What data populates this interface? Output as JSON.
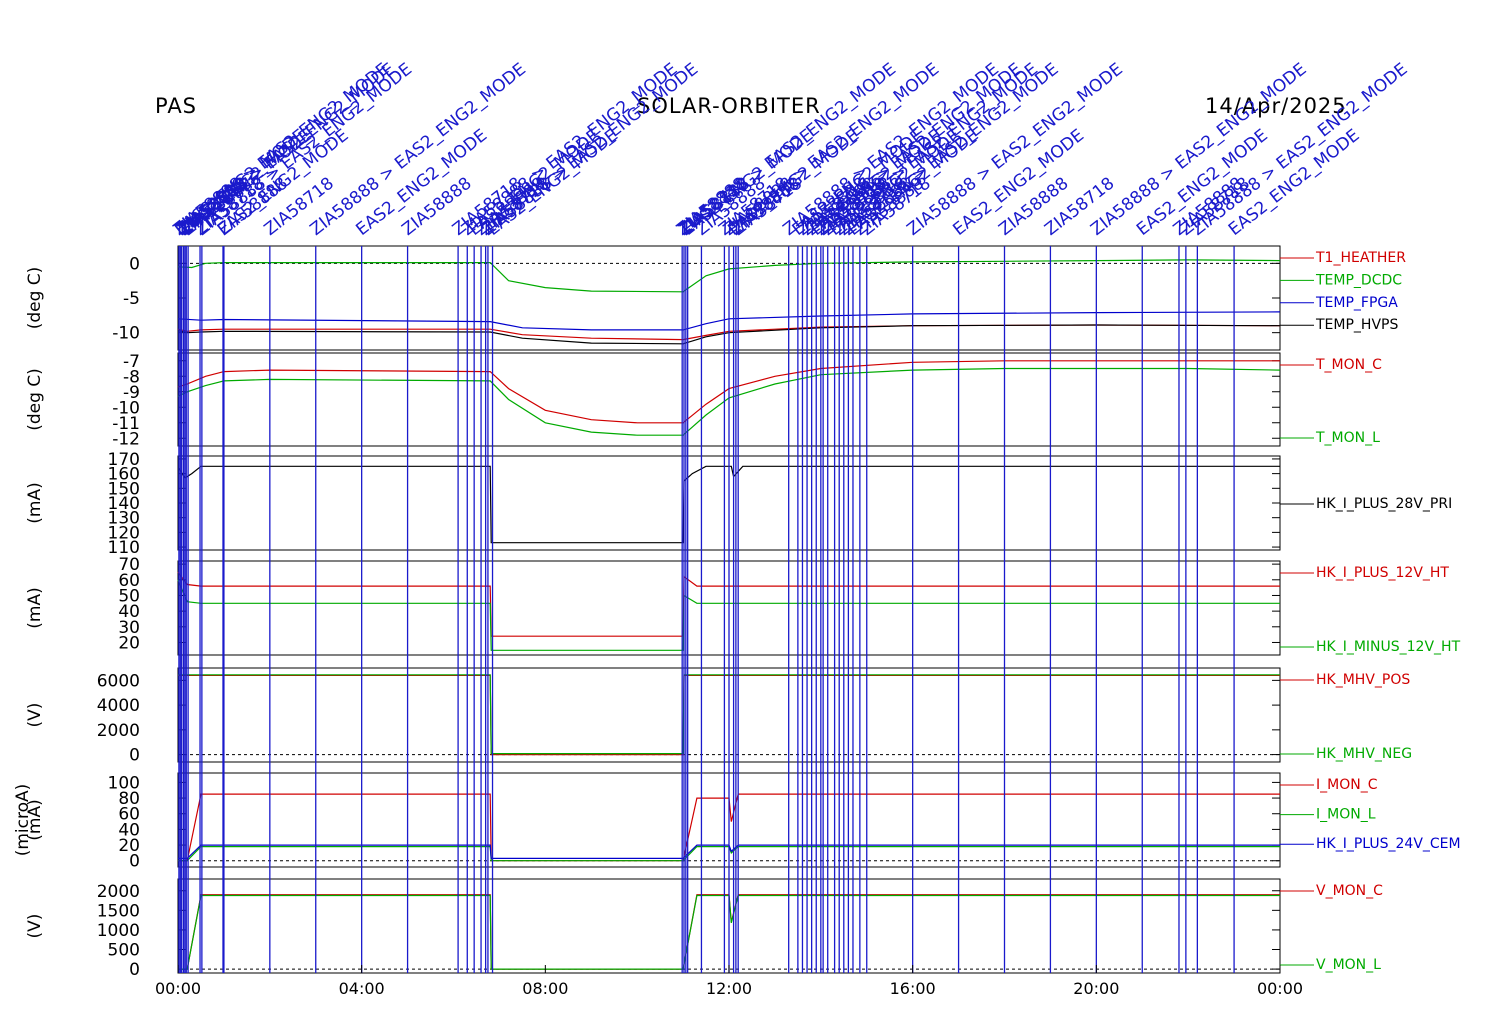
{
  "header": {
    "left": "PAS",
    "center": "SOLAR-ORBITER",
    "right": "14/Apr/2025"
  },
  "colors": {
    "red": "#d00000",
    "green": "#00aa00",
    "blue": "#0000cc",
    "black": "#000000",
    "event": "#1a1acc"
  },
  "chart_data": {
    "type": "line",
    "x_range_hours": [
      0,
      24
    ],
    "x_ticks": [
      "00:00",
      "04:00",
      "08:00",
      "12:00",
      "16:00",
      "20:00",
      "00:00"
    ],
    "event_lines_hours": [
      0.02,
      0.05,
      0.08,
      0.12,
      0.15,
      0.18,
      0.22,
      0.48,
      0.52,
      0.98,
      1.0,
      2.0,
      3.0,
      4.0,
      5.0,
      6.1,
      6.3,
      6.45,
      6.6,
      6.7,
      6.75,
      6.85,
      10.98,
      11.02,
      11.06,
      11.1,
      11.4,
      11.9,
      12.0,
      12.1,
      12.15,
      12.2,
      13.3,
      13.5,
      13.6,
      13.7,
      13.8,
      13.9,
      14.0,
      14.05,
      14.15,
      14.3,
      14.4,
      14.5,
      14.6,
      14.7,
      14.85,
      15.0,
      16.0,
      17.0,
      18.0,
      19.0,
      20.0,
      21.0,
      21.8,
      21.95,
      22.2,
      23.0
    ],
    "event_labels": [
      "ZIA58888 > EAS2_ENG2_MODE",
      "EAS2_ENG2_MODE",
      "ZIA58888",
      "ZIA58718"
    ],
    "panels": [
      {
        "ylabel": "(deg C)",
        "ylim": [
          -12.5,
          2.5
        ],
        "ticks": [
          0,
          -5,
          -10
        ],
        "zero_line": true,
        "series": [
          {
            "name": "T1_HEATHER",
            "color": "red",
            "x": [
              0,
              0.2,
              0.5,
              1,
              6.8,
              7.5,
              9,
              11,
              11.5,
              12,
              14,
              16,
              20,
              24
            ],
            "y": [
              -9.5,
              -9.8,
              -9.6,
              -9.5,
              -9.5,
              -10.3,
              -10.8,
              -11,
              -10.4,
              -9.8,
              -9.2,
              -9,
              -8.9,
              -9
            ]
          },
          {
            "name": "TEMP_DCDC",
            "color": "green",
            "x": [
              0,
              0.3,
              0.6,
              1,
              6.8,
              7.2,
              8,
              9,
              11,
              11.5,
              12,
              13,
              14,
              16,
              18,
              20,
              22,
              24
            ],
            "y": [
              -0.5,
              -0.6,
              0,
              0.1,
              0.1,
              -2.5,
              -3.5,
              -4,
              -4.1,
              -1.8,
              -0.8,
              -0.3,
              0,
              0.2,
              0.3,
              0.4,
              0.5,
              0.4
            ]
          },
          {
            "name": "TEMP_FPGA",
            "color": "blue",
            "x": [
              0,
              0.5,
              1,
              6.8,
              7.5,
              9,
              11,
              11.5,
              12,
              14,
              16,
              20,
              24
            ],
            "y": [
              -8,
              -8.2,
              -8.1,
              -8.4,
              -9.3,
              -9.6,
              -9.6,
              -8.7,
              -8,
              -7.6,
              -7.3,
              -7.1,
              -7
            ]
          },
          {
            "name": "TEMP_HVPS",
            "color": "black",
            "x": [
              0,
              0.2,
              0.5,
              1,
              6.8,
              7.5,
              9,
              11,
              11.5,
              12,
              14,
              16,
              20,
              24
            ],
            "y": [
              -9.7,
              -10,
              -9.9,
              -9.8,
              -9.9,
              -10.8,
              -11.5,
              -11.6,
              -10.6,
              -10,
              -9.3,
              -9,
              -8.9,
              -9
            ]
          }
        ]
      },
      {
        "ylabel": "(deg C)",
        "ylim": [
          -12.5,
          -6.5
        ],
        "ticks": [
          -7,
          -8,
          -9,
          -10,
          -11,
          -12
        ],
        "zero_line": false,
        "series": [
          {
            "name": "T_MON_C",
            "color": "red",
            "x": [
              0,
              0.2,
              0.6,
              1,
              2,
              6.8,
              7.2,
              8,
              9,
              10,
              11,
              11.5,
              12,
              13,
              14,
              16,
              18,
              20,
              22,
              24
            ],
            "y": [
              -8.7,
              -8.5,
              -8.0,
              -7.7,
              -7.6,
              -7.7,
              -8.8,
              -10.2,
              -10.8,
              -11.0,
              -11.0,
              -9.8,
              -8.8,
              -8.0,
              -7.5,
              -7.1,
              -7.0,
              -7.0,
              -7.0,
              -7.0
            ]
          },
          {
            "name": "T_MON_L",
            "color": "green",
            "x": [
              0,
              0.2,
              0.6,
              1,
              2,
              6.8,
              7.2,
              8,
              9,
              10,
              11,
              11.5,
              12,
              13,
              14,
              16,
              18,
              20,
              22,
              24
            ],
            "y": [
              -9.3,
              -9.0,
              -8.6,
              -8.3,
              -8.2,
              -8.3,
              -9.5,
              -11.0,
              -11.6,
              -11.8,
              -11.8,
              -10.5,
              -9.4,
              -8.5,
              -7.9,
              -7.6,
              -7.5,
              -7.5,
              -7.5,
              -7.6
            ]
          }
        ]
      },
      {
        "ylabel": "(mA)",
        "ylim": [
          108,
          172
        ],
        "ticks": [
          170,
          160,
          150,
          140,
          130,
          120,
          110
        ],
        "zero_line": false,
        "series": [
          {
            "name": "HK_I_PLUS_28V_PRI",
            "color": "black",
            "x": [
              0,
              0.15,
              0.3,
              0.5,
              6.8,
              6.82,
              11,
              11.02,
              11.2,
              11.5,
              12.05,
              12.1,
              12.3,
              24
            ],
            "y": [
              165,
              157,
              160,
              165,
              165,
              113,
              113,
              155,
              160,
              165,
              165,
              158,
              165,
              165
            ]
          }
        ]
      },
      {
        "ylabel": "(mA)",
        "ylim": [
          12,
          72
        ],
        "ticks": [
          70,
          60,
          50,
          40,
          30,
          20
        ],
        "zero_line": false,
        "series": [
          {
            "name": "HK_I_PLUS_12V_HT",
            "color": "red",
            "x": [
              0,
              0.2,
              0.5,
              6.8,
              6.82,
              11,
              11.02,
              11.3,
              24
            ],
            "y": [
              65,
              57,
              56,
              56,
              24,
              24,
              62,
              56,
              56
            ]
          },
          {
            "name": "HK_I_MINUS_12V_HT",
            "color": "green",
            "x": [
              0,
              0.2,
              0.5,
              6.8,
              6.82,
              11,
              11.02,
              11.3,
              24
            ],
            "y": [
              60,
              46,
              45,
              45,
              15,
              15,
              50,
              45,
              45
            ]
          }
        ]
      },
      {
        "ylabel": "(V)",
        "ylim": [
          -600,
          7000
        ],
        "ticks": [
          6000,
          4000,
          2000,
          0
        ],
        "zero_line": true,
        "series": [
          {
            "name": "HK_MHV_POS",
            "color": "red",
            "x": [
              0,
              6.8,
              6.82,
              11,
              11.02,
              24
            ],
            "y": [
              6400,
              6400,
              0,
              0,
              6400,
              6400
            ]
          },
          {
            "name": "HK_MHV_NEG",
            "color": "green",
            "x": [
              0,
              6.8,
              6.82,
              11,
              11.02,
              24
            ],
            "y": [
              6450,
              6450,
              80,
              80,
              6450,
              6450
            ]
          }
        ]
      },
      {
        "ylabel": "(mA)",
        "ylabel2": "(microA)",
        "ylim": [
          -8,
          112
        ],
        "ticks": [
          100,
          80,
          60,
          40,
          20,
          0
        ],
        "zero_line": true,
        "series": [
          {
            "name": "I_MON_C",
            "color": "red",
            "x": [
              0,
              0.2,
              0.5,
              6.8,
              6.82,
              11,
              11.3,
              12,
              12.05,
              12.2,
              24
            ],
            "y": [
              0,
              0,
              85,
              85,
              0,
              0,
              80,
              80,
              50,
              85,
              85
            ]
          },
          {
            "name": "I_MON_L",
            "color": "green",
            "x": [
              0,
              0.2,
              0.5,
              6.8,
              6.82,
              11,
              11.3,
              12,
              12.05,
              12.2,
              24
            ],
            "y": [
              0,
              0,
              18,
              18,
              0,
              0,
              18,
              18,
              10,
              18,
              18
            ]
          },
          {
            "name": "HK_I_PLUS_24V_CEM",
            "color": "blue",
            "x": [
              0,
              0.2,
              0.5,
              6.8,
              6.82,
              11,
              11.3,
              12,
              12.05,
              12.2,
              24
            ],
            "y": [
              3,
              3,
              20,
              20,
              3,
              3,
              20,
              20,
              12,
              20,
              20
            ]
          }
        ]
      },
      {
        "ylabel": "(V)",
        "ylim": [
          -100,
          2300
        ],
        "ticks": [
          2000,
          1500,
          1000,
          500,
          0
        ],
        "zero_line": true,
        "series": [
          {
            "name": "V_MON_C",
            "color": "red",
            "x": [
              0,
              0.2,
              0.5,
              6.8,
              6.82,
              11,
              11.3,
              12,
              12.05,
              12.2,
              24
            ],
            "y": [
              0,
              0,
              1900,
              1900,
              0,
              0,
              1900,
              1900,
              1200,
              1900,
              1900
            ]
          },
          {
            "name": "V_MON_L",
            "color": "green",
            "x": [
              0,
              0.2,
              0.5,
              6.8,
              6.82,
              11,
              11.3,
              12,
              12.05,
              12.2,
              24
            ],
            "y": [
              0,
              0,
              1880,
              1880,
              0,
              0,
              1880,
              1880,
              1180,
              1880,
              1880
            ]
          }
        ]
      }
    ]
  }
}
